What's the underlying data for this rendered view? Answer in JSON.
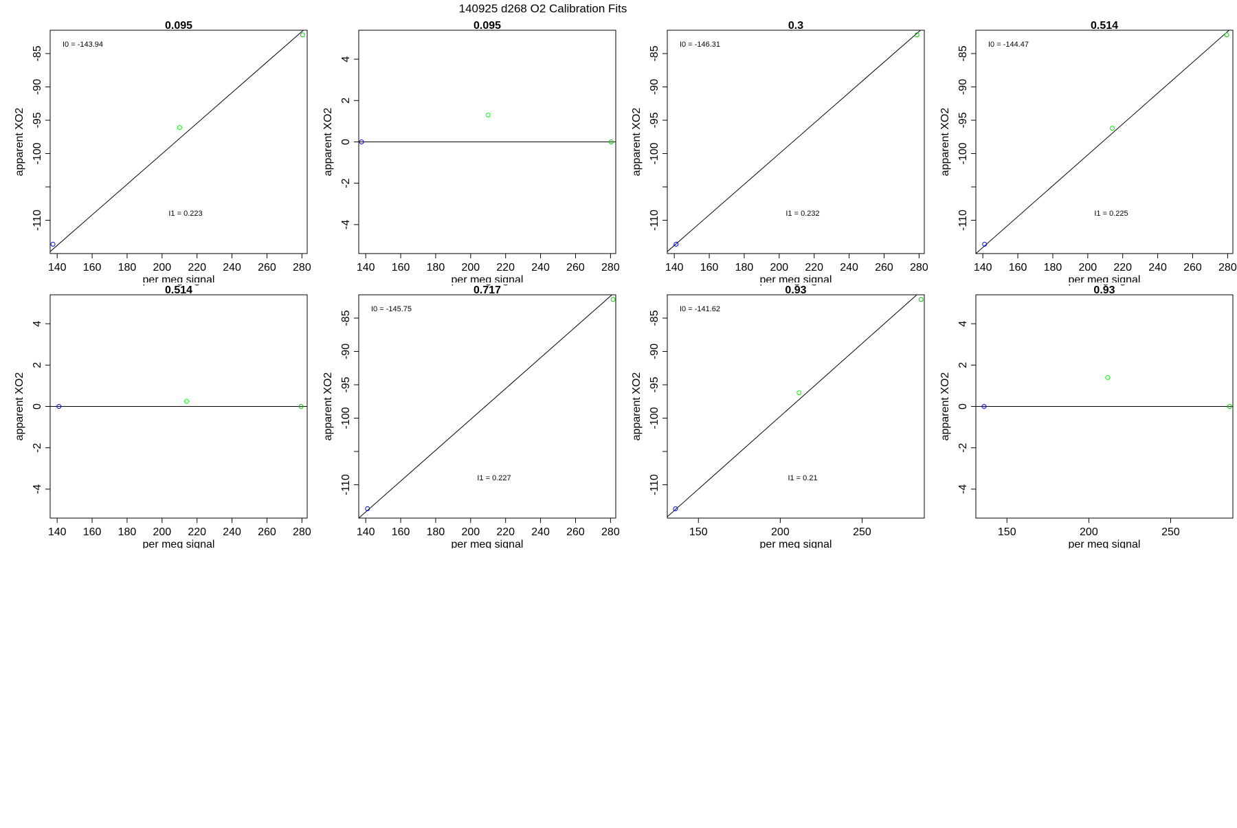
{
  "page_title": "140925   d268   O2 Calibration Fits",
  "chart_data": [
    {
      "type": "scatter",
      "title": "0.095",
      "xlabel": "per meg signal",
      "ylabel": "apparent XO2",
      "xlim": [
        136,
        283
      ],
      "ylim": [
        -115,
        -81.5
      ],
      "xticks": [
        140,
        160,
        180,
        200,
        220,
        240,
        260,
        280
      ],
      "yticks": [
        -85,
        -90,
        -95,
        -100,
        -110
      ],
      "points": [
        {
          "x": 137.6,
          "y": -113.6,
          "color": "#0000ff"
        },
        {
          "x": 210,
          "y": -96.1,
          "color": "#00ff00"
        },
        {
          "x": 280.4,
          "y": -82.2,
          "color": "#00cc00"
        }
      ],
      "fit_line": [
        [
          136,
          -114.7
        ],
        [
          283,
          -81.0
        ]
      ],
      "annotations": [
        {
          "text": "I0 =  -143.94",
          "pos": "upper-left"
        },
        {
          "text": "I1 =  0.223",
          "pos": "lower-middle"
        }
      ]
    },
    {
      "type": "scatter",
      "title": "0.095",
      "xlabel": "per meg signal",
      "ylabel": "apparent XO2",
      "xlim": [
        136,
        283
      ],
      "ylim": [
        -5.4,
        5.4
      ],
      "xticks": [
        140,
        160,
        180,
        200,
        220,
        240,
        260,
        280
      ],
      "yticks": [
        4,
        2,
        0,
        -2,
        -4
      ],
      "points": [
        {
          "x": 137.6,
          "y": 0,
          "color": "#0000ff"
        },
        {
          "x": 210,
          "y": 1.3,
          "color": "#00ff00"
        },
        {
          "x": 280.4,
          "y": 0,
          "color": "#00cc00"
        }
      ],
      "fit_line": [
        [
          136,
          0
        ],
        [
          283,
          0
        ]
      ],
      "annotations": []
    },
    {
      "type": "scatter",
      "title": "0.3",
      "xlabel": "per meg signal",
      "ylabel": "apparent XO2",
      "xlim": [
        136,
        283
      ],
      "ylim": [
        -115,
        -81.5
      ],
      "xticks": [
        140,
        160,
        180,
        200,
        220,
        240,
        260,
        280
      ],
      "yticks": [
        -85,
        -90,
        -95,
        -100,
        -110
      ],
      "points": [
        {
          "x": 141,
          "y": -113.6,
          "color": "#0000ff"
        },
        {
          "x": 278.8,
          "y": -82.2,
          "color": "#00cc00"
        }
      ],
      "fit_line": [
        [
          136,
          -114.7
        ],
        [
          283,
          -81.0
        ]
      ],
      "annotations": [
        {
          "text": "I0 =  -146.31",
          "pos": "upper-left"
        },
        {
          "text": "I1 =  0.232",
          "pos": "lower-middle"
        }
      ]
    },
    {
      "type": "scatter",
      "title": "0.514",
      "xlabel": "per meg signal",
      "ylabel": "apparent XO2",
      "xlim": [
        136,
        283
      ],
      "ylim": [
        -115,
        -81.5
      ],
      "xticks": [
        140,
        160,
        180,
        200,
        220,
        240,
        260,
        280
      ],
      "yticks": [
        -85,
        -90,
        -95,
        -100,
        -110
      ],
      "points": [
        {
          "x": 141,
          "y": -113.6,
          "color": "#0000ff"
        },
        {
          "x": 214,
          "y": -96.2,
          "color": "#00ff00"
        },
        {
          "x": 279.5,
          "y": -82.2,
          "color": "#00cc00"
        }
      ],
      "fit_line": [
        [
          136,
          -115
        ],
        [
          283,
          -81.0
        ]
      ],
      "annotations": [
        {
          "text": "I0 =  -144.47",
          "pos": "upper-left"
        },
        {
          "text": "I1 =  0.225",
          "pos": "lower-middle"
        }
      ]
    },
    {
      "type": "scatter",
      "title": "0.514",
      "xlabel": "per meg signal",
      "ylabel": "apparent XO2",
      "xlim": [
        136,
        283
      ],
      "ylim": [
        -5.4,
        5.4
      ],
      "xticks": [
        140,
        160,
        180,
        200,
        220,
        240,
        260,
        280
      ],
      "yticks": [
        4,
        2,
        0,
        -2,
        -4
      ],
      "points": [
        {
          "x": 141,
          "y": 0,
          "color": "#0000ff"
        },
        {
          "x": 214,
          "y": 0.25,
          "color": "#00ff00"
        },
        {
          "x": 279.5,
          "y": 0,
          "color": "#00cc00"
        }
      ],
      "fit_line": [
        [
          136,
          0
        ],
        [
          283,
          0
        ]
      ],
      "annotations": []
    },
    {
      "type": "scatter",
      "title": "0.717",
      "xlabel": "per meg signal",
      "ylabel": "apparent XO2",
      "xlim": [
        136,
        283
      ],
      "ylim": [
        -115,
        -81.5
      ],
      "xticks": [
        140,
        160,
        180,
        200,
        220,
        240,
        260,
        280
      ],
      "yticks": [
        -85,
        -90,
        -95,
        -100,
        -110
      ],
      "points": [
        {
          "x": 141,
          "y": -113.6,
          "color": "#0000ff"
        },
        {
          "x": 281.5,
          "y": -82.2,
          "color": "#00cc00"
        }
      ],
      "fit_line": [
        [
          136,
          -115
        ],
        [
          283,
          -81.0
        ]
      ],
      "annotations": [
        {
          "text": "I0 =  -145.75",
          "pos": "upper-left"
        },
        {
          "text": "I1 =  0.227",
          "pos": "lower-middle"
        }
      ]
    },
    {
      "type": "scatter",
      "title": "0.93",
      "xlabel": "per meg signal",
      "ylabel": "apparent XO2",
      "xlim": [
        131,
        288
      ],
      "ylim": [
        -115,
        -81.5
      ],
      "xticks": [
        150,
        200,
        250
      ],
      "yticks": [
        -85,
        -90,
        -95,
        -100,
        -110
      ],
      "points": [
        {
          "x": 136,
          "y": -113.6,
          "color": "#0000ff"
        },
        {
          "x": 211.5,
          "y": -96.2,
          "color": "#00ff00"
        },
        {
          "x": 286,
          "y": -82.2,
          "color": "#00cc00"
        }
      ],
      "fit_line": [
        [
          131,
          -114.8
        ],
        [
          288,
          -80.5
        ]
      ],
      "annotations": [
        {
          "text": "I0 =  -141.62",
          "pos": "upper-left"
        },
        {
          "text": "I1 =  0.21",
          "pos": "lower-middle"
        }
      ]
    },
    {
      "type": "scatter",
      "title": "0.93",
      "xlabel": "per meg signal",
      "ylabel": "apparent XO2",
      "xlim": [
        131,
        288
      ],
      "ylim": [
        -5.4,
        5.4
      ],
      "xticks": [
        150,
        200,
        250
      ],
      "yticks": [
        4,
        2,
        0,
        -2,
        -4
      ],
      "points": [
        {
          "x": 136,
          "y": 0,
          "color": "#0000ff"
        },
        {
          "x": 211.5,
          "y": 1.4,
          "color": "#00ff00"
        },
        {
          "x": 286,
          "y": 0,
          "color": "#00cc00"
        }
      ],
      "fit_line": [
        [
          131,
          0
        ],
        [
          288,
          0
        ]
      ],
      "annotations": []
    }
  ]
}
